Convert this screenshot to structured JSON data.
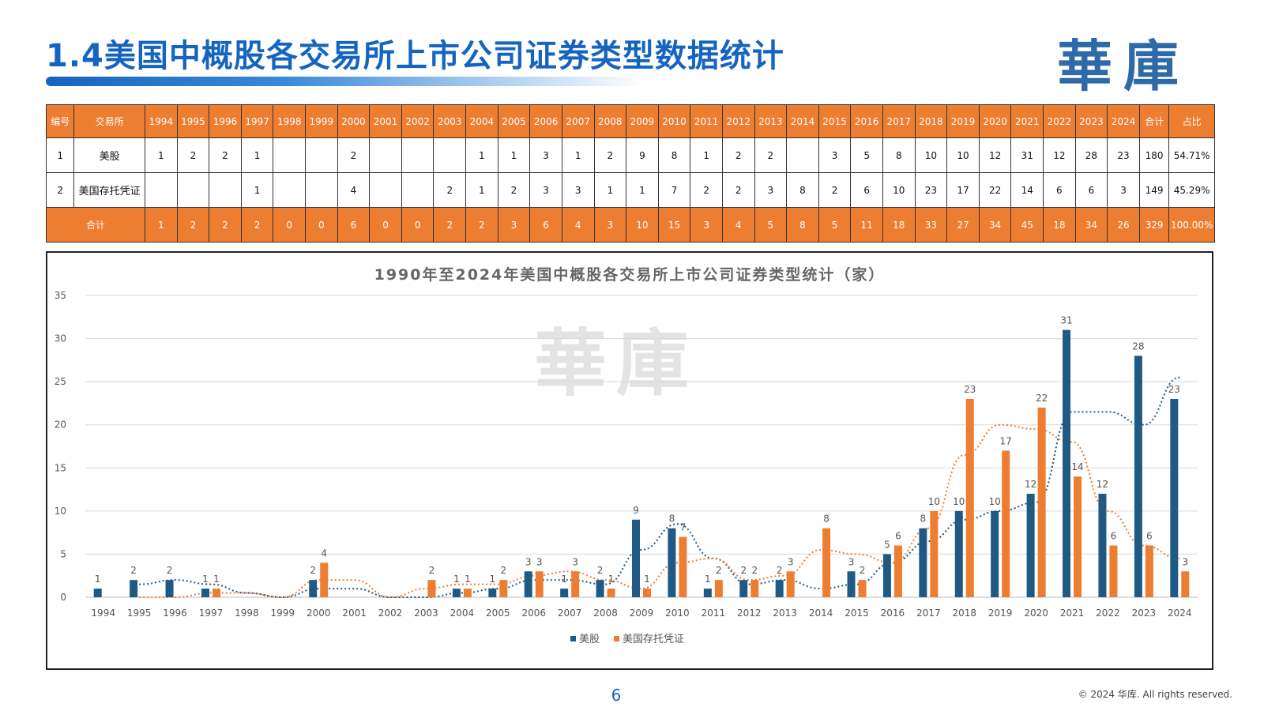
{
  "page": {
    "title": "1.4美国中概股各交易所上市公司证券类型数据统计",
    "logo": "華庫",
    "page_number": "6",
    "copyright": "© 2024 华库. All rights reserved."
  },
  "table": {
    "headers": [
      "编号",
      "交易所",
      "1994",
      "1995",
      "1996",
      "1997",
      "1998",
      "1999",
      "2000",
      "2001",
      "2002",
      "2003",
      "2004",
      "2005",
      "2006",
      "2007",
      "2008",
      "2009",
      "2010",
      "2011",
      "2012",
      "2013",
      "2014",
      "2015",
      "2016",
      "2017",
      "2018",
      "2019",
      "2020",
      "2021",
      "2022",
      "2023",
      "2024",
      "合计",
      "占比"
    ],
    "rows": [
      [
        "1",
        "美股",
        "1",
        "2",
        "2",
        "1",
        "",
        "",
        "2",
        "",
        "",
        "",
        "1",
        "1",
        "3",
        "1",
        "2",
        "9",
        "8",
        "1",
        "2",
        "2",
        "",
        "3",
        "5",
        "8",
        "10",
        "10",
        "12",
        "31",
        "12",
        "28",
        "23",
        "180",
        "54.71%"
      ],
      [
        "2",
        "美国存托凭证",
        "",
        "",
        "",
        "1",
        "",
        "",
        "4",
        "",
        "",
        "2",
        "1",
        "2",
        "3",
        "3",
        "1",
        "1",
        "7",
        "2",
        "2",
        "3",
        "8",
        "2",
        "6",
        "10",
        "23",
        "17",
        "22",
        "14",
        "6",
        "6",
        "3",
        "149",
        "45.29%"
      ]
    ],
    "total_label": "合计",
    "totals": [
      "1",
      "2",
      "2",
      "2",
      "0",
      "0",
      "6",
      "0",
      "0",
      "2",
      "2",
      "3",
      "6",
      "4",
      "3",
      "10",
      "15",
      "3",
      "4",
      "5",
      "8",
      "5",
      "11",
      "18",
      "33",
      "27",
      "34",
      "45",
      "18",
      "34",
      "26",
      "329",
      "100.00%"
    ]
  },
  "chart_data": {
    "type": "bar",
    "title": "1990年至2024年美国中概股各交易所上市公司证券类型统计（家）",
    "watermark": "華庫",
    "categories": [
      "1994",
      "1995",
      "1996",
      "1997",
      "1998",
      "1999",
      "2000",
      "2001",
      "2002",
      "2003",
      "2004",
      "2005",
      "2006",
      "2007",
      "2008",
      "2009",
      "2010",
      "2011",
      "2012",
      "2013",
      "2014",
      "2015",
      "2016",
      "2017",
      "2018",
      "2019",
      "2020",
      "2021",
      "2022",
      "2023",
      "2024"
    ],
    "series": [
      {
        "name": "美股",
        "color": "#1f5a85",
        "values": [
          1,
          2,
          2,
          1,
          null,
          null,
          2,
          null,
          null,
          null,
          1,
          1,
          3,
          1,
          2,
          9,
          8,
          1,
          2,
          2,
          null,
          3,
          5,
          8,
          10,
          10,
          12,
          31,
          12,
          28,
          23
        ]
      },
      {
        "name": "美国存托凭证",
        "color": "#ed7d31",
        "values": [
          null,
          null,
          null,
          1,
          null,
          null,
          4,
          null,
          null,
          2,
          1,
          2,
          3,
          3,
          1,
          1,
          7,
          2,
          2,
          3,
          8,
          2,
          6,
          10,
          23,
          17,
          22,
          14,
          6,
          6,
          3
        ]
      }
    ],
    "trendlines": "dotted 2-period moving average per series",
    "ylim": [
      0,
      35
    ],
    "yticks": [
      0,
      5,
      10,
      15,
      20,
      25,
      30,
      35
    ],
    "grid": true,
    "legend": "bottom"
  }
}
